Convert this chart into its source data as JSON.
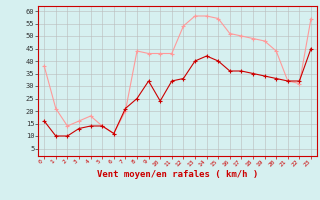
{
  "x": [
    0,
    1,
    2,
    3,
    4,
    5,
    6,
    7,
    8,
    9,
    10,
    11,
    12,
    13,
    14,
    15,
    16,
    17,
    18,
    19,
    20,
    21,
    22,
    23
  ],
  "vent_moyen": [
    16,
    10,
    10,
    13,
    14,
    14,
    11,
    21,
    25,
    32,
    24,
    32,
    33,
    40,
    42,
    40,
    36,
    36,
    35,
    34,
    33,
    32,
    32,
    45
  ],
  "vent_rafales": [
    38,
    21,
    14,
    16,
    18,
    14,
    11,
    20,
    44,
    43,
    43,
    43,
    54,
    58,
    58,
    57,
    51,
    50,
    49,
    48,
    44,
    32,
    31,
    57
  ],
  "bg_color": "#d6f0f0",
  "grid_color": "#bbbbbb",
  "line_moyen_color": "#cc0000",
  "line_rafales_color": "#ff9999",
  "xlabel": "Vent moyen/en rafales ( km/h )",
  "yticks": [
    5,
    10,
    15,
    20,
    25,
    30,
    35,
    40,
    45,
    50,
    55,
    60
  ],
  "ylim": [
    2,
    62
  ],
  "xlim": [
    -0.5,
    23.5
  ]
}
